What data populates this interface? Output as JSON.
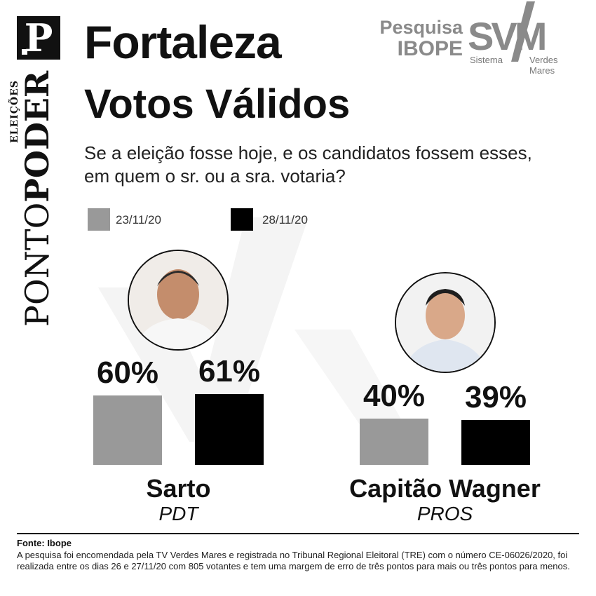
{
  "brand": {
    "logo_letter": "P",
    "name_light": "PONTO",
    "name_bold": "PODER",
    "subtitle": "ELEIÇÕES"
  },
  "header": {
    "city": "Fortaleza",
    "ibope_line1": "Pesquisa",
    "ibope_line2": "IBOPE",
    "svm_text": "SVM",
    "svm_sub1": "Sistema",
    "svm_sub2": "Verdes Mares"
  },
  "question": "Se a eleição fosse hoje, e os candidatos fossem esses, em quem o sr. ou a sra. votaria?",
  "colors": {
    "series1": "#999999",
    "series2": "#000000"
  },
  "chart_data": {
    "type": "bar",
    "title": "Votos Válidos",
    "categories": [
      "Sarto",
      "Capitão Wagner"
    ],
    "parties": [
      "PDT",
      "PROS"
    ],
    "series": [
      {
        "name": "23/11/20",
        "values": [
          60,
          40
        ],
        "labels": [
          "60%",
          "40%"
        ]
      },
      {
        "name": "28/11/20",
        "values": [
          61,
          39
        ],
        "labels": [
          "61%",
          "39%"
        ]
      }
    ],
    "ylim": [
      0,
      100
    ],
    "grid": false,
    "legend": "top-left"
  },
  "footer": {
    "source": "Fonte: Ibope",
    "note": "A pesquisa foi encomendada pela TV Verdes Mares e registrada no Tribunal Regional Eleitoral (TRE) com o número CE-06026/2020, foi realizada entre os dias 26 e 27/11/20 com 805 votantes e tem uma margem de erro de três pontos para mais ou três pontos para menos."
  }
}
